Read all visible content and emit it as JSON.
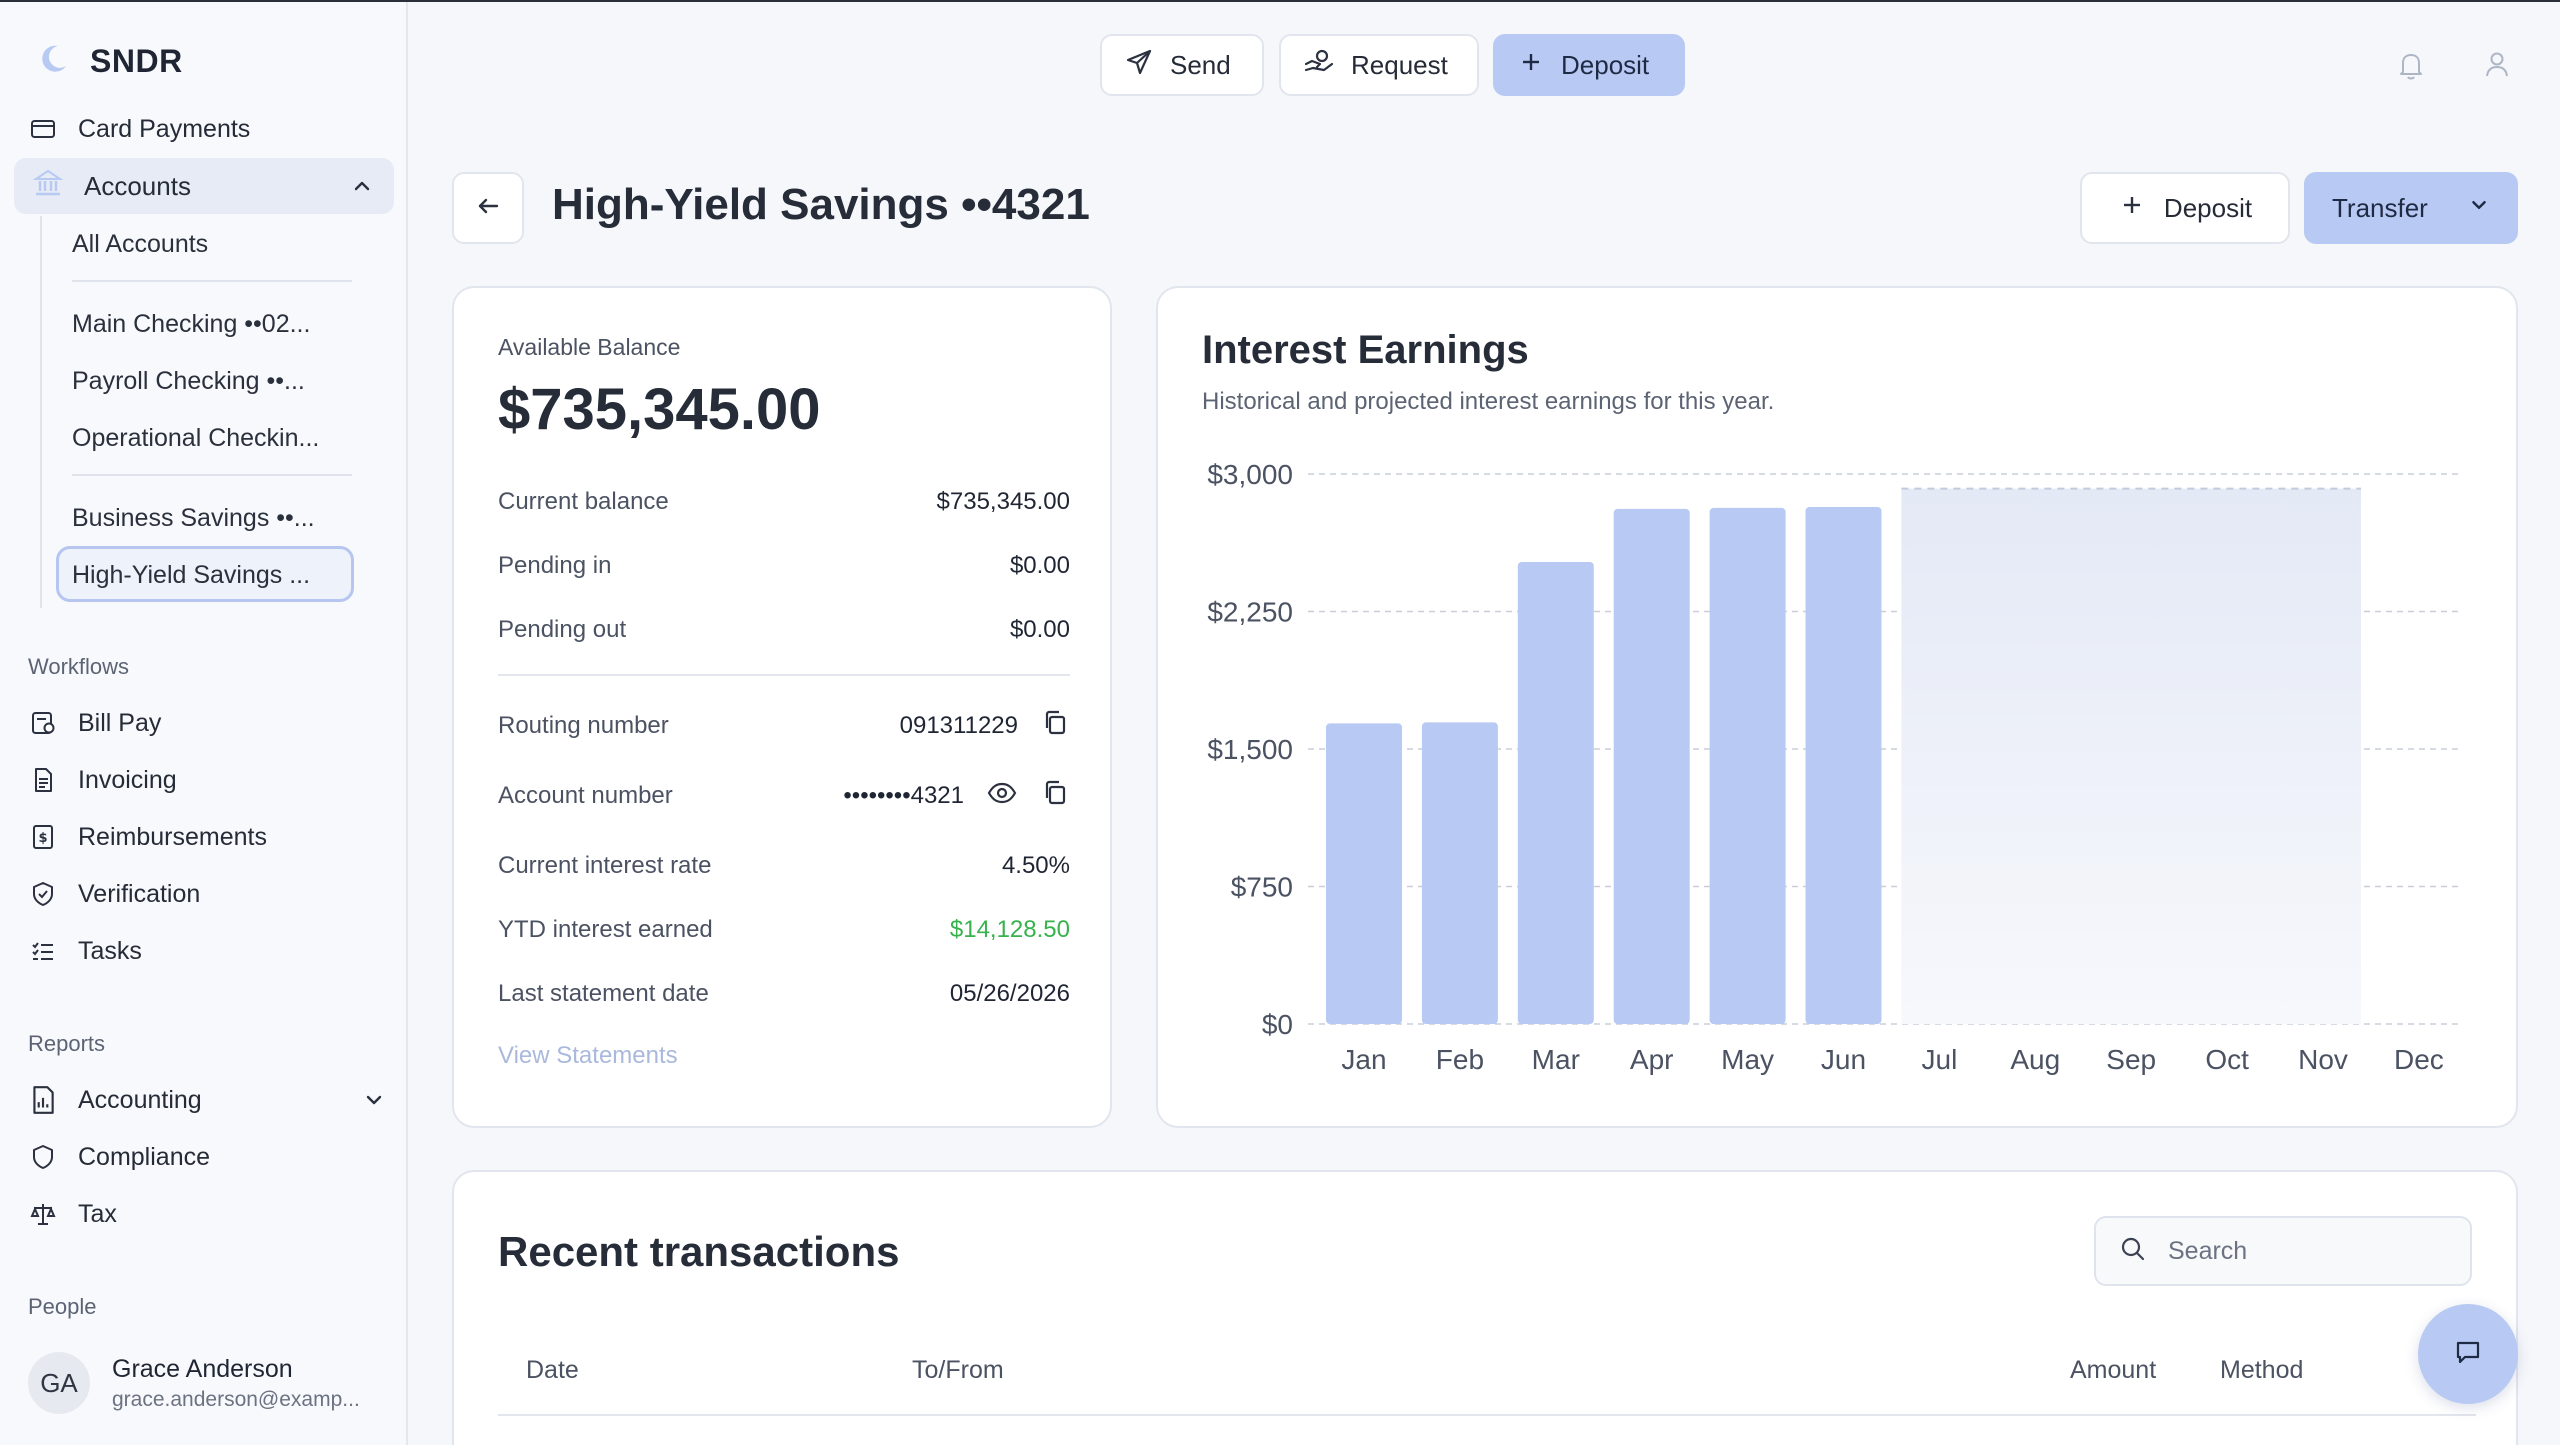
{
  "app": {
    "name": "SNDR"
  },
  "sidebar": {
    "card_payments": "Card Payments",
    "accounts": "Accounts",
    "account_links": {
      "all": "All Accounts",
      "main_checking": "Main Checking ••02...",
      "payroll_checking": "Payroll Checking ••...",
      "operational": "Operational Checkin...",
      "business_savings": "Business Savings ••...",
      "high_yield": "High-Yield Savings ..."
    },
    "workflows_label": "Workflows",
    "workflows": {
      "bill_pay": "Bill Pay",
      "invoicing": "Invoicing",
      "reimbursements": "Reimbursements",
      "verification": "Verification",
      "tasks": "Tasks"
    },
    "reports_label": "Reports",
    "reports": {
      "accounting": "Accounting",
      "compliance": "Compliance",
      "tax": "Tax"
    },
    "people_label": "People",
    "user": {
      "initials": "GA",
      "name": "Grace Anderson",
      "email": "grace.anderson@examp..."
    }
  },
  "topbar": {
    "send": "Send",
    "request": "Request",
    "deposit": "Deposit"
  },
  "page": {
    "title": "High-Yield Savings ••4321",
    "deposit": "Deposit",
    "transfer": "Transfer"
  },
  "balance": {
    "label": "Available Balance",
    "amount": "$735,345.00",
    "rows": {
      "current_balance": {
        "label": "Current balance",
        "value": "$735,345.00"
      },
      "pending_in": {
        "label": "Pending in",
        "value": "$0.00"
      },
      "pending_out": {
        "label": "Pending out",
        "value": "$0.00"
      },
      "routing": {
        "label": "Routing number",
        "value": "091311229"
      },
      "account": {
        "label": "Account number",
        "value": "••••••••4321"
      },
      "interest_rate": {
        "label": "Current interest rate",
        "value": "4.50%"
      },
      "ytd_interest": {
        "label": "YTD interest earned",
        "value": "$14,128.50"
      },
      "last_statement": {
        "label": "Last statement date",
        "value": "05/26/2026"
      }
    },
    "view_statements": "View Statements"
  },
  "chart_data": {
    "type": "bar",
    "title": "Interest Earnings",
    "subtitle": "Historical and projected interest earnings for this year.",
    "categories": [
      "Jan",
      "Feb",
      "Mar",
      "Apr",
      "May",
      "Jun",
      "Jul",
      "Aug",
      "Sep",
      "Oct",
      "Nov",
      "Dec"
    ],
    "values": [
      1640,
      1645,
      2520,
      2810,
      2815,
      2820,
      null,
      null,
      null,
      null,
      null,
      null
    ],
    "projected": {
      "from": "Jul",
      "to": "Nov",
      "value": 2920
    },
    "ylim": [
      0,
      3000
    ],
    "yticks": [
      "$0",
      "$750",
      "$1,500",
      "$2,250",
      "$3,000"
    ],
    "ytick_values": [
      0,
      750,
      1500,
      2250,
      3000
    ],
    "grid": true,
    "bar_color": "#b8caf3"
  },
  "transactions": {
    "title": "Recent transactions",
    "search_placeholder": "Search",
    "columns": {
      "date": "Date",
      "to_from": "To/From",
      "amount": "Amount",
      "method": "Method"
    }
  }
}
